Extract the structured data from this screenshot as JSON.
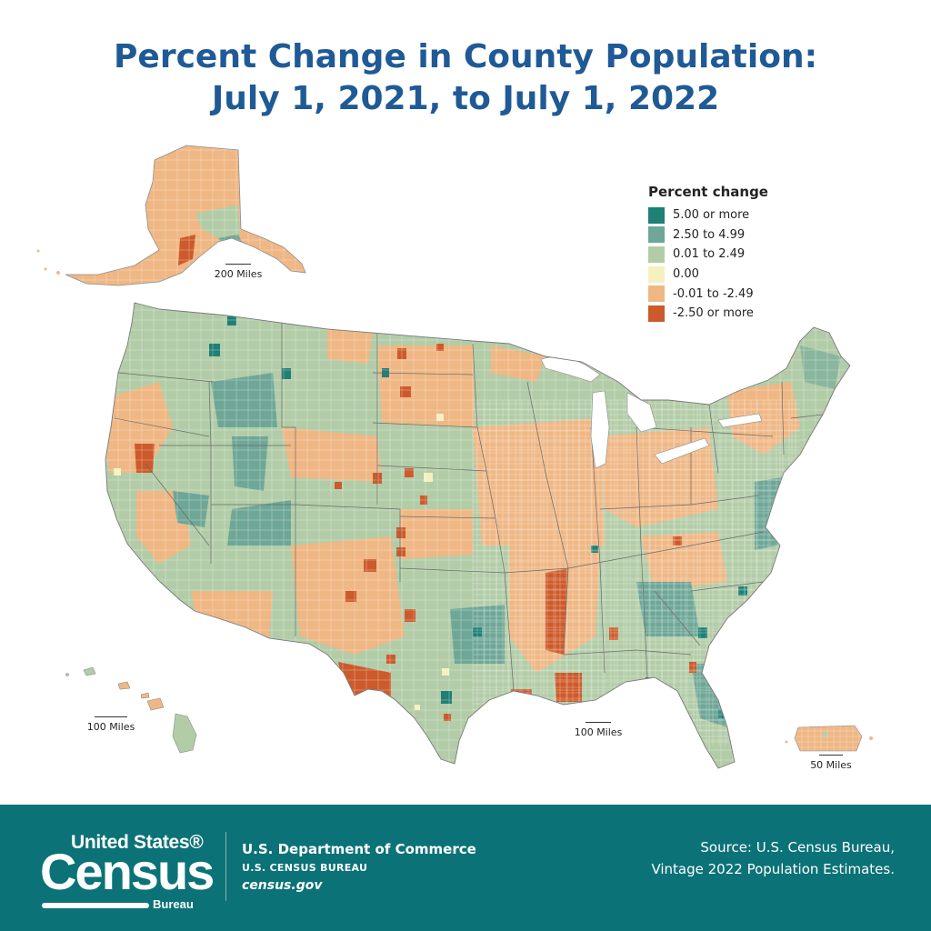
{
  "title": {
    "line1": "Percent Change in County Population:",
    "line2": "July 1, 2021, to July 1, 2022"
  },
  "legend": {
    "title": "Percent change",
    "items": [
      {
        "label": "5.00 or more",
        "color": "#1e8077"
      },
      {
        "label": "2.50 to 4.99",
        "color": "#6ea797"
      },
      {
        "label": "0.01 to 2.49",
        "color": "#b2cca7"
      },
      {
        "label": "0.00",
        "color": "#f5f0bf"
      },
      {
        "label": "-0.01 to -2.49",
        "color": "#efb784"
      },
      {
        "label": "-2.50 or more",
        "color": "#cd5a2a"
      }
    ]
  },
  "scale_bars": {
    "alaska": "200 Miles",
    "hawaii": "100 Miles",
    "conus": "100 Miles",
    "puerto_rico": "50 Miles"
  },
  "footer": {
    "logo_top": "United States®",
    "logo_main": "Census",
    "logo_bureau": "Bureau",
    "department": "U.S. Department of Commerce",
    "bureau": "U.S. CENSUS BUREAU",
    "website": "census.gov",
    "source_line1": "Source: U.S. Census Bureau,",
    "source_line2": "Vintage 2022 Population Estimates."
  },
  "colors": {
    "title": "#1f5a96",
    "footer_bg": "#0b7277"
  }
}
